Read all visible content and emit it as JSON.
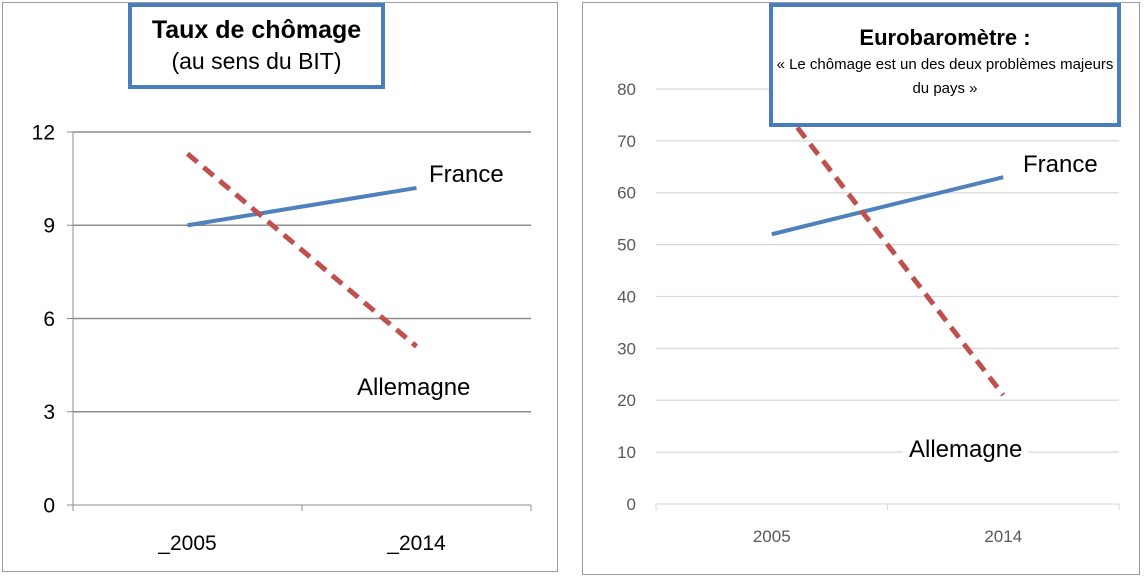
{
  "chart_data": [
    {
      "type": "line",
      "title": "Taux de chômage",
      "subtitle": "(au sens du BIT)",
      "categories": [
        "_2005",
        "_2014"
      ],
      "yticks": [
        "0",
        "3",
        "6",
        "9",
        "12"
      ],
      "ylim": [
        0,
        12
      ],
      "grid": true,
      "series": [
        {
          "name": "France",
          "values": [
            9.0,
            10.2
          ],
          "color": "#4f81bd",
          "style": "solid"
        },
        {
          "name": "Allemagne",
          "values": [
            11.3,
            5.1
          ],
          "color": "#c0504d",
          "style": "dashed"
        }
      ]
    },
    {
      "type": "line",
      "title": "Eurobaromètre :",
      "subtitle": "« Le chômage est un des deux problèmes majeurs du pays »",
      "categories": [
        "2005",
        "2014"
      ],
      "yticks": [
        "0",
        "10",
        "20",
        "30",
        "40",
        "50",
        "60",
        "70",
        "80"
      ],
      "ylim": [
        0,
        80
      ],
      "grid": true,
      "series": [
        {
          "name": "France",
          "values": [
            52,
            63
          ],
          "color": "#4f81bd",
          "style": "solid"
        },
        {
          "name": "Allemagne",
          "values": [
            79,
            21
          ],
          "color": "#c0504d",
          "style": "dashed"
        }
      ]
    }
  ]
}
